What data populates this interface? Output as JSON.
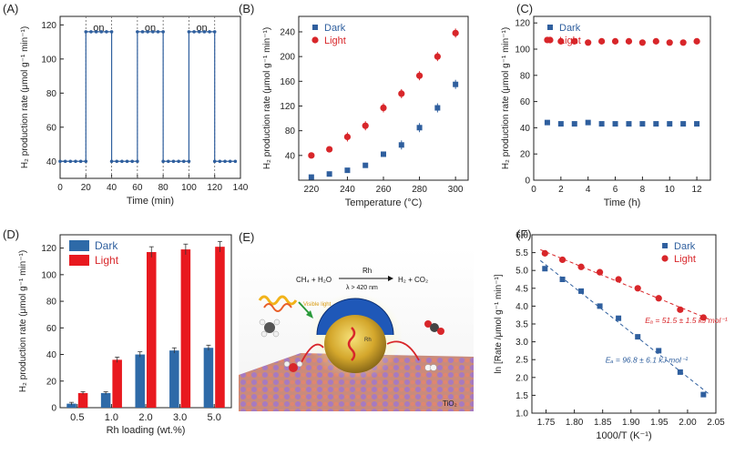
{
  "colors": {
    "dark": "#2f5f9e",
    "light": "#d8262a",
    "light_bar": "#e8191f",
    "dark_bar": "#2e6aa8",
    "axis": "#222222"
  },
  "panels": {
    "A": {
      "label": "(A)",
      "on_labels": [
        "on",
        "on",
        "on"
      ]
    },
    "E": {
      "label": "(E)",
      "equation_left": "CH₄ + H₂O",
      "equation_catalyst": "Rh",
      "equation_condition": "λ > 420 nm",
      "equation_right": "H₂ + CO₂",
      "visible_light": "Visible light",
      "support": "TiO₂",
      "rh_label": "Rh"
    }
  },
  "chart_data": [
    {
      "panel": "A",
      "label": "(A)",
      "type": "line",
      "xlabel": "Time (min)",
      "ylabel": "H₂ production rate (μmol g⁻¹ min⁻¹)",
      "xlim": [
        0,
        140
      ],
      "ylim": [
        30,
        125
      ],
      "xticks": [
        0,
        20,
        40,
        60,
        80,
        100,
        120,
        140
      ],
      "yticks": [
        40,
        60,
        80,
        100,
        120
      ],
      "on_intervals": [
        [
          20,
          40
        ],
        [
          60,
          80
        ],
        [
          100,
          120
        ]
      ],
      "series": [
        {
          "x": [
            0,
            4,
            8,
            12,
            16,
            20,
            20,
            24,
            28,
            32,
            36,
            40,
            40,
            44,
            48,
            52,
            56,
            60,
            60,
            64,
            68,
            72,
            76,
            80,
            80,
            84,
            88,
            92,
            96,
            100,
            100,
            104,
            108,
            112,
            116,
            120,
            120,
            124,
            128,
            132,
            136
          ],
          "y": [
            40,
            40,
            40,
            40,
            40,
            40,
            116,
            116,
            116,
            116,
            116,
            116,
            40,
            40,
            40,
            40,
            40,
            40,
            116,
            116,
            116,
            116,
            116,
            116,
            40,
            40,
            40,
            40,
            40,
            40,
            116,
            116,
            116,
            116,
            116,
            116,
            40,
            40,
            40,
            40,
            40
          ]
        }
      ]
    },
    {
      "panel": "B",
      "label": "(B)",
      "type": "scatter",
      "xlabel": "Temperature (°C)",
      "ylabel": "H₂ production rate (μmol g⁻¹ min⁻¹)",
      "xlim": [
        213,
        307
      ],
      "ylim": [
        0,
        265
      ],
      "xticks": [
        220,
        240,
        260,
        280,
        300
      ],
      "yticks": [
        40,
        80,
        120,
        160,
        200,
        240
      ],
      "legend": "top-left",
      "series": [
        {
          "name": "Dark",
          "x": [
            220,
            230,
            240,
            250,
            260,
            270,
            280,
            290,
            300
          ],
          "y": [
            5,
            10,
            16,
            24,
            42,
            57,
            85,
            117,
            155
          ]
        },
        {
          "name": "Light",
          "x": [
            220,
            230,
            240,
            250,
            260,
            270,
            280,
            290,
            300
          ],
          "y": [
            40,
            50,
            70,
            88,
            117,
            140,
            169,
            200,
            238
          ]
        }
      ]
    },
    {
      "panel": "C",
      "label": "(C)",
      "type": "scatter",
      "xlabel": "Time (h)",
      "ylabel": "H₂ production rate (μmol g⁻¹ min⁻¹)",
      "xlim": [
        0,
        13
      ],
      "ylim": [
        0,
        125
      ],
      "xticks": [
        0,
        2,
        4,
        6,
        8,
        10,
        12
      ],
      "yticks": [
        0,
        20,
        40,
        60,
        80,
        100,
        120
      ],
      "legend": "top-left",
      "series": [
        {
          "name": "Dark",
          "x": [
            1,
            2,
            3,
            4,
            5,
            6,
            7,
            8,
            9,
            10,
            11,
            12
          ],
          "y": [
            44,
            43,
            43,
            44,
            43,
            43,
            43,
            43,
            43,
            43,
            43,
            43
          ]
        },
        {
          "name": "Light",
          "x": [
            1,
            2,
            3,
            4,
            5,
            6,
            7,
            8,
            9,
            10,
            11,
            12
          ],
          "y": [
            107,
            106,
            106,
            105,
            106,
            106,
            106,
            105,
            106,
            105,
            105,
            106
          ]
        }
      ]
    },
    {
      "panel": "D",
      "label": "(D)",
      "type": "bar",
      "xlabel": "Rh loading (wt.%)",
      "ylabel": "H₂ production rate (μmol g⁻¹ min⁻¹)",
      "ylim": [
        0,
        130
      ],
      "yticks": [
        0,
        20,
        40,
        60,
        80,
        100,
        120
      ],
      "categories": [
        "0.5",
        "1.0",
        "2.0",
        "3.0",
        "5.0"
      ],
      "legend": "top-left",
      "series": [
        {
          "name": "Dark",
          "values": [
            3,
            11,
            40,
            43,
            45
          ],
          "errors": [
            1,
            1,
            2,
            2,
            2
          ]
        },
        {
          "name": "Light",
          "values": [
            11,
            36,
            117,
            119,
            121
          ],
          "errors": [
            1,
            2,
            4,
            4,
            4
          ]
        }
      ]
    },
    {
      "panel": "F",
      "label": "(F)",
      "type": "scatter",
      "xlabel": "1000/T (K⁻¹)",
      "ylabel": "ln [Rate /μmol g⁻¹ min⁻¹]",
      "xlim": [
        1.725,
        2.05
      ],
      "ylim": [
        1.0,
        6.0
      ],
      "xticks": [
        1.75,
        1.8,
        1.85,
        1.9,
        1.95,
        2.0,
        2.05
      ],
      "yticks": [
        1.0,
        1.5,
        2.0,
        2.5,
        3.0,
        3.5,
        4.0,
        4.5,
        5.0,
        5.5,
        6.0
      ],
      "legend": "top-right",
      "annotations": [
        "Eₐ = 51.5 ± 1.5 kJ mol⁻¹",
        "Eₐ = 96.8 ± 6.1 kJ mol⁻¹"
      ],
      "series": [
        {
          "name": "Dark",
          "x": [
            1.748,
            1.779,
            1.812,
            1.845,
            1.878,
            1.912,
            1.949,
            1.987,
            2.028
          ],
          "y": [
            5.05,
            4.75,
            4.42,
            4.0,
            3.66,
            3.14,
            2.75,
            2.15,
            1.52
          ]
        },
        {
          "name": "Light",
          "x": [
            1.748,
            1.779,
            1.812,
            1.845,
            1.878,
            1.912,
            1.949,
            1.987,
            2.028
          ],
          "y": [
            5.48,
            5.3,
            5.1,
            4.95,
            4.75,
            4.5,
            4.22,
            3.9,
            3.68
          ]
        }
      ]
    }
  ]
}
